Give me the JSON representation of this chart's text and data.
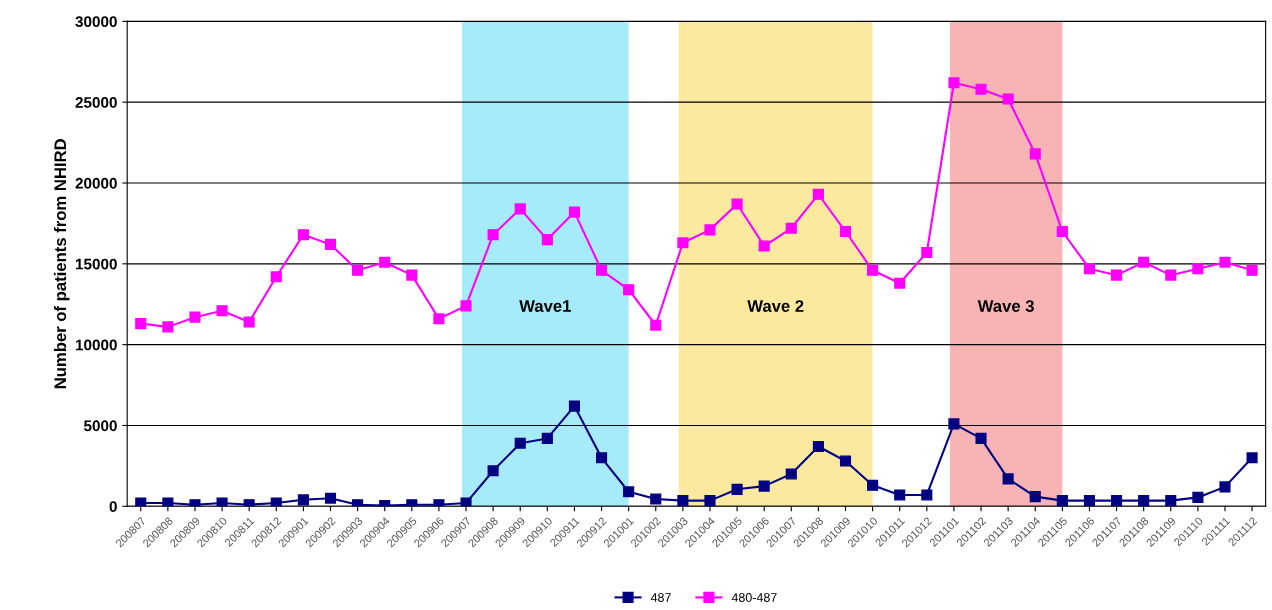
{
  "chart_data": {
    "type": "line",
    "ylabel": "Number of patients from NHIRD",
    "categories": [
      "200807",
      "200808",
      "200809",
      "200810",
      "200811",
      "200812",
      "200901",
      "200902",
      "200903",
      "200904",
      "200905",
      "200906",
      "200907",
      "200908",
      "200909",
      "200910",
      "200911",
      "200912",
      "201001",
      "201002",
      "201003",
      "201004",
      "201005",
      "201006",
      "201007",
      "201008",
      "201009",
      "201010",
      "201011",
      "201012",
      "201101",
      "201102",
      "201103",
      "201104",
      "201105",
      "201106",
      "201107",
      "201108",
      "201109",
      "201110",
      "201111",
      "201112"
    ],
    "series": [
      {
        "name": "487",
        "color": "#000080",
        "values": [
          200,
          200,
          100,
          200,
          100,
          200,
          400,
          500,
          100,
          50,
          100,
          100,
          200,
          2200,
          3900,
          4200,
          6200,
          3000,
          900,
          450,
          350,
          350,
          1050,
          1250,
          2000,
          3700,
          2800,
          1300,
          700,
          700,
          5100,
          4200,
          1700,
          600,
          350,
          350,
          350,
          350,
          350,
          550,
          1200,
          3000
        ]
      },
      {
        "name": "480-487",
        "color": "#ff00ff",
        "values": [
          11300,
          11100,
          11700,
          12100,
          11400,
          14200,
          16800,
          16200,
          14600,
          15100,
          14300,
          11600,
          12400,
          16800,
          18400,
          16500,
          18200,
          14600,
          13400,
          11200,
          16300,
          17100,
          18700,
          16100,
          17200,
          19300,
          17000,
          14600,
          13800,
          15700,
          26200,
          25800,
          25200,
          21800,
          17000,
          14700,
          14300,
          15100,
          14300,
          14700,
          15100,
          14600
        ]
      }
    ],
    "bands": [
      {
        "axis": "x",
        "from": "200907",
        "to": "201001",
        "label": "Wave1",
        "color": "#a6ebfa"
      },
      {
        "axis": "x",
        "from": "201003",
        "to": "201010",
        "label": "Wave 2",
        "color": "#fce9a0"
      },
      {
        "axis": "x",
        "from": "201101",
        "to": "201105",
        "label": "Wave 3",
        "color": "#f8b4b4"
      }
    ],
    "ylim": [
      0,
      30000
    ],
    "yticks": [
      0,
      5000,
      10000,
      15000,
      20000,
      25000,
      30000
    ],
    "grid": "y",
    "legend": "bottom",
    "marker": "square",
    "line_style": "solid"
  }
}
